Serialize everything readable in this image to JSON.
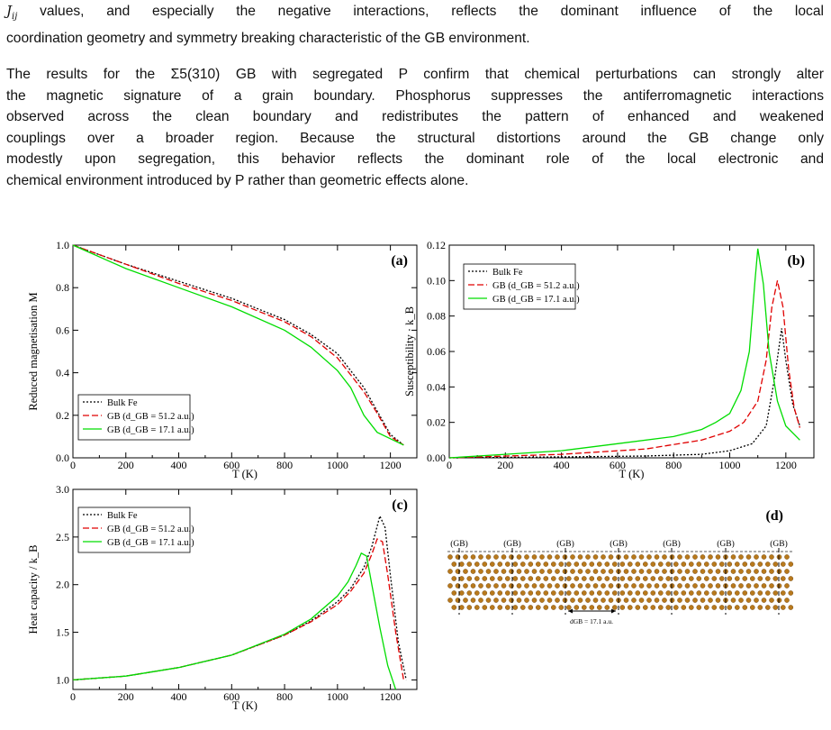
{
  "paragraph1": {
    "line1_symbol": "J",
    "line1_symbol_sub": "ij",
    "line1_text": " values, and especially the negative interactions, reflects the dominant influence of the local",
    "line2": "coordination geometry and symmetry breaking characteristic of the GB environment."
  },
  "paragraph2": {
    "lines": [
      "The results for the Σ5(310) GB with segregated P confirm that chemical perturbations can strongly alter",
      "the magnetic signature of a grain boundary. Phosphorus suppresses the antiferromagnetic interactions",
      "observed across the clean boundary and redistributes the pattern of enhanced and weakened",
      "couplings over a broader region. Because the structural distortions around the GB change only",
      "modestly upon segregation, this behavior reflects the dominant role of the local electronic and",
      "chemical environment introduced by P rather than geometric effects alone."
    ]
  },
  "chart_data": [
    {
      "panel": "(a)",
      "type": "line",
      "ylabel": "Reduced magnetisation  M",
      "xlabel": "T (K)",
      "xlim": [
        0,
        1300
      ],
      "ylim": [
        0.0,
        1.0
      ],
      "xticks": [
        "0",
        "200",
        "400",
        "600",
        "800",
        "1000",
        "1200"
      ],
      "yticks": [
        "0.0",
        "0.2",
        "0.4",
        "0.6",
        "0.8",
        "1.0"
      ],
      "legend": [
        "Bulk Fe",
        "GB (d_GB = 51.2 a.u.)",
        "GB (d_GB = 17.1 a.u.)"
      ],
      "legend_placement": "bottom-left",
      "series": [
        {
          "name": "Bulk Fe",
          "color": "#000000",
          "dash": "2,2",
          "x": [
            0,
            200,
            400,
            600,
            800,
            900,
            1000,
            1100,
            1150,
            1200,
            1250
          ],
          "y": [
            1.0,
            0.91,
            0.83,
            0.75,
            0.65,
            0.58,
            0.49,
            0.33,
            0.22,
            0.11,
            0.06
          ]
        },
        {
          "name": "GB (d_GB = 51.2 a.u.)",
          "color": "#e00000",
          "dash": "7,3",
          "x": [
            0,
            200,
            400,
            600,
            800,
            900,
            1000,
            1100,
            1150,
            1200,
            1250
          ],
          "y": [
            1.0,
            0.91,
            0.82,
            0.74,
            0.64,
            0.57,
            0.47,
            0.31,
            0.21,
            0.1,
            0.06
          ]
        },
        {
          "name": "GB (d_GB = 17.1 a.u.)",
          "color": "#00dd00",
          "dash": "",
          "x": [
            0,
            200,
            400,
            600,
            800,
            900,
            1000,
            1050,
            1100,
            1150,
            1200,
            1250
          ],
          "y": [
            1.0,
            0.89,
            0.8,
            0.71,
            0.6,
            0.52,
            0.41,
            0.33,
            0.2,
            0.12,
            0.09,
            0.06
          ]
        }
      ]
    },
    {
      "panel": "(b)",
      "type": "line",
      "ylabel": "Susceptibility · k_B",
      "xlabel": "T (K)",
      "xlim": [
        0,
        1300
      ],
      "ylim": [
        0.0,
        0.12
      ],
      "xticks": [
        "0",
        "200",
        "400",
        "600",
        "800",
        "1000",
        "1200"
      ],
      "yticks": [
        "0.00",
        "0.02",
        "0.04",
        "0.06",
        "0.08",
        "0.10",
        "0.12"
      ],
      "legend": [
        "Bulk Fe",
        "GB (d_GB = 51.2 a.u.)",
        "GB (d_GB = 17.1 a.u.)"
      ],
      "legend_placement": "top-left",
      "series": [
        {
          "name": "Bulk Fe",
          "color": "#000000",
          "dash": "2,2",
          "x": [
            0,
            400,
            700,
            900,
            1000,
            1080,
            1130,
            1160,
            1185,
            1200,
            1225,
            1250
          ],
          "y": [
            0.0,
            0.0005,
            0.001,
            0.002,
            0.004,
            0.008,
            0.018,
            0.045,
            0.073,
            0.055,
            0.03,
            0.018
          ]
        },
        {
          "name": "GB (d_GB = 51.2 a.u.)",
          "color": "#e00000",
          "dash": "7,3",
          "x": [
            0,
            400,
            700,
            900,
            1000,
            1050,
            1100,
            1130,
            1150,
            1170,
            1190,
            1210,
            1230,
            1250
          ],
          "y": [
            0.0,
            0.002,
            0.005,
            0.01,
            0.015,
            0.02,
            0.032,
            0.055,
            0.085,
            0.1,
            0.085,
            0.05,
            0.028,
            0.017
          ]
        },
        {
          "name": "GB (d_GB = 17.1 a.u.)",
          "color": "#00dd00",
          "dash": "",
          "x": [
            0,
            200,
            400,
            600,
            800,
            900,
            950,
            1000,
            1040,
            1070,
            1090,
            1100,
            1120,
            1140,
            1170,
            1200,
            1250
          ],
          "y": [
            0.0,
            0.002,
            0.004,
            0.008,
            0.012,
            0.016,
            0.02,
            0.025,
            0.038,
            0.06,
            0.1,
            0.118,
            0.098,
            0.06,
            0.032,
            0.018,
            0.01
          ]
        }
      ]
    },
    {
      "panel": "(c)",
      "type": "line",
      "ylabel": "Heat capacity / k_B",
      "xlabel": "T (K)",
      "xlim": [
        0,
        1300
      ],
      "ylim": [
        0.9,
        3.0
      ],
      "xticks": [
        "0",
        "200",
        "400",
        "600",
        "800",
        "1000",
        "1200"
      ],
      "yticks": [
        "1.0",
        "1.5",
        "2.0",
        "2.5",
        "3.0"
      ],
      "legend": [
        "Bulk Fe",
        "GB (d_GB = 51.2 a.u.)",
        "GB (d_GB = 17.1 a.u.)"
      ],
      "legend_placement": "top-left",
      "series": [
        {
          "name": "Bulk Fe",
          "color": "#000000",
          "dash": "2,2",
          "x": [
            0,
            200,
            400,
            600,
            800,
            900,
            1000,
            1050,
            1100,
            1130,
            1160,
            1180,
            1200,
            1230,
            1260
          ],
          "y": [
            1.0,
            1.04,
            1.13,
            1.26,
            1.47,
            1.62,
            1.82,
            1.96,
            2.18,
            2.4,
            2.72,
            2.6,
            2.1,
            1.4,
            1.0
          ]
        },
        {
          "name": "GB (d_GB = 51.2 a.u.)",
          "color": "#e00000",
          "dash": "7,3",
          "x": [
            0,
            200,
            400,
            600,
            800,
            900,
            1000,
            1050,
            1100,
            1130,
            1150,
            1170,
            1190,
            1220,
            1250
          ],
          "y": [
            1.0,
            1.04,
            1.13,
            1.26,
            1.47,
            1.61,
            1.79,
            1.93,
            2.12,
            2.32,
            2.48,
            2.45,
            2.1,
            1.5,
            1.0
          ]
        },
        {
          "name": "GB (d_GB = 17.1 a.u.)",
          "color": "#00dd00",
          "dash": "",
          "x": [
            0,
            200,
            400,
            600,
            800,
            900,
            1000,
            1040,
            1070,
            1090,
            1110,
            1130,
            1160,
            1190,
            1220
          ],
          "y": [
            1.0,
            1.04,
            1.13,
            1.26,
            1.48,
            1.64,
            1.88,
            2.03,
            2.2,
            2.33,
            2.3,
            2.0,
            1.55,
            1.15,
            0.9
          ]
        }
      ]
    }
  ],
  "panel_d": {
    "label": "(d)",
    "gb_labels": [
      "(GB)",
      "(GB)",
      "(GB)",
      "(GB)",
      "(GB)",
      "(GB)",
      "(GB)"
    ],
    "dimension_label": "dGB = 17.1 a.u.",
    "atom_color": "#b8791c"
  }
}
